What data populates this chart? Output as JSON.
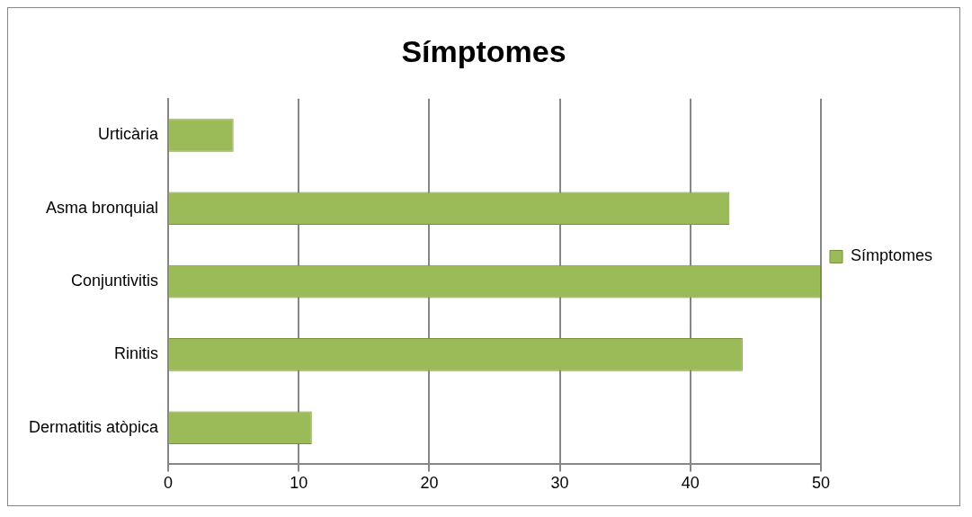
{
  "chart_data": {
    "type": "bar",
    "orientation": "horizontal",
    "title": "Símptomes",
    "categories": [
      "Urticària",
      "Asma bronquial",
      "Conjuntivitis",
      "Rinitis",
      "Dermatitis atòpica"
    ],
    "series": [
      {
        "name": "Símptomes",
        "color": "#9bbb59",
        "values": [
          5,
          43,
          50,
          44,
          11
        ]
      }
    ],
    "xlim": [
      0,
      50
    ],
    "xticks": [
      0,
      10,
      20,
      30,
      40,
      50
    ],
    "grid": "x",
    "legend": "right"
  }
}
